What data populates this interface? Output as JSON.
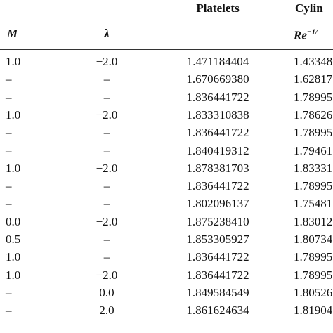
{
  "table": {
    "header": {
      "platelets": "Platelets",
      "cylinders": "Cylin",
      "m": "M",
      "lambda": "λ",
      "re": "Re",
      "re_exp": "−1/"
    },
    "rows": [
      [
        "1.0",
        "−2.0",
        "1.471184404",
        "1.43348"
      ],
      [
        "–",
        "–",
        "1.670669380",
        "1.62817"
      ],
      [
        "–",
        "–",
        "1.836441722",
        "1.78995"
      ],
      [
        "1.0",
        "−2.0",
        "1.833310838",
        "1.78626"
      ],
      [
        "–",
        "–",
        "1.836441722",
        "1.78995"
      ],
      [
        "–",
        "–",
        "1.840419312",
        "1.79461"
      ],
      [
        "1.0",
        "−2.0",
        "1.878381703",
        "1.83331"
      ],
      [
        "–",
        "–",
        "1.836441722",
        "1.78995"
      ],
      [
        "–",
        "–",
        "1.802096137",
        "1.75481"
      ],
      [
        "0.0",
        "−2.0",
        "1.875238410",
        "1.83012"
      ],
      [
        "0.5",
        "–",
        "1.853305927",
        "1.80734"
      ],
      [
        "1.0",
        "–",
        "1.836441722",
        "1.78995"
      ],
      [
        "1.0",
        "−2.0",
        "1.836441722",
        "1.78995"
      ],
      [
        "–",
        "0.0",
        "1.849584549",
        "1.80526"
      ],
      [
        "–",
        "2.0",
        "1.861624634",
        "1.81904"
      ]
    ]
  }
}
